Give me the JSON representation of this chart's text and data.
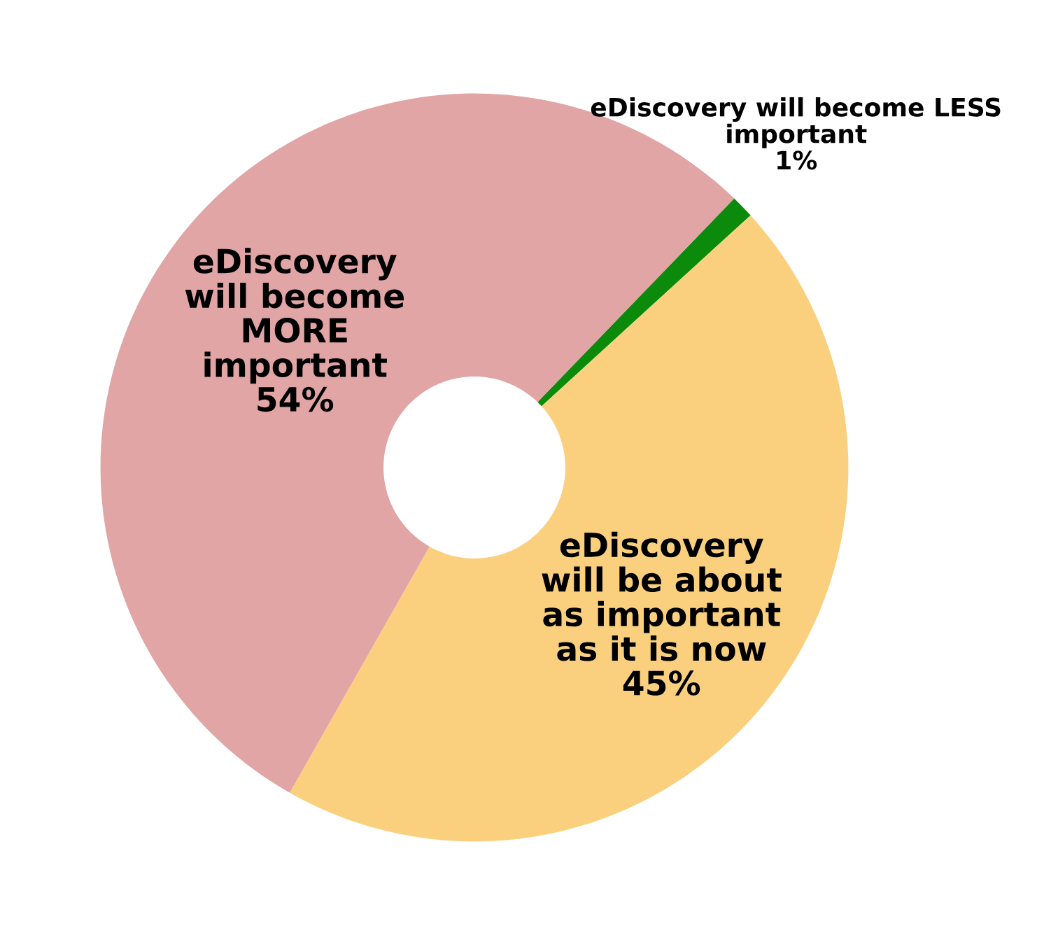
{
  "chart_data": {
    "type": "donut",
    "categories": [
      "eDiscovery will become LESS\nimportant",
      "eDiscovery\nwill be about\nas important\nas it is now",
      "eDiscovery\nwill become\nMORE\nimportant"
    ],
    "values": [
      1,
      45,
      54
    ],
    "value_labels": [
      "1%",
      "45%",
      "54%"
    ],
    "colors": [
      "#0b8a0b",
      "#fad07f",
      "#e0a5a4"
    ],
    "legend": false
  }
}
